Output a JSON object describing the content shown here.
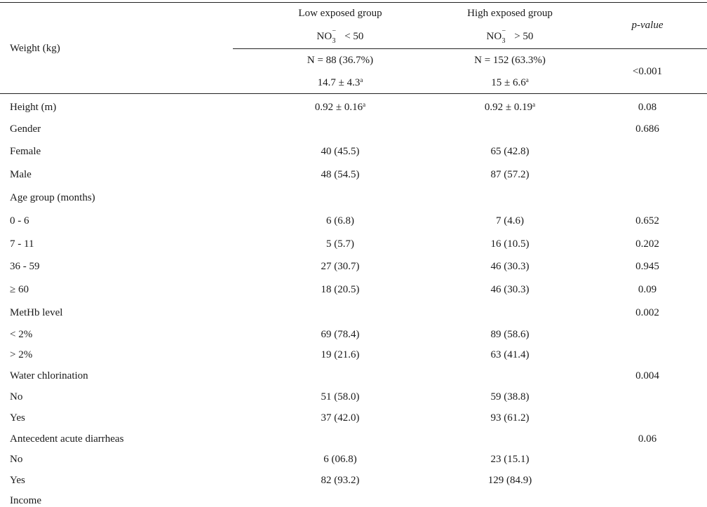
{
  "header": {
    "row_label": "Weight (kg)",
    "low_group_title": "Low exposed group",
    "high_group_title": "High exposed group",
    "pvalue_title": "p-value",
    "low_condition": {
      "species": "NO",
      "subscript": "3",
      "charge": "−",
      "op_value": "< 50"
    },
    "high_condition": {
      "species": "NO",
      "subscript": "3",
      "charge": "−",
      "op_value": "> 50"
    },
    "low_n": "N = 88 (36.7%)",
    "high_n": "N = 152 (63.3%)",
    "weight_low": "14.7 ± 4.3",
    "weight_high": "15 ± 6.6",
    "weight_sup": "a",
    "weight_p": "<0.001"
  },
  "rows": [
    {
      "label": "Height (m)",
      "low": "0.92 ± 0.16",
      "high": "0.92 ± 0.19",
      "sup": "a",
      "p": "0.08"
    },
    {
      "label": "Gender",
      "low": "",
      "high": "",
      "p": "0.686"
    },
    {
      "label": "Female",
      "low": "40 (45.5)",
      "high": "65 (42.8)",
      "p": ""
    },
    {
      "label": "Male",
      "low": "48 (54.5)",
      "high": "87 (57.2)",
      "p": ""
    },
    {
      "label": "Age group (months)",
      "low": "",
      "high": "",
      "p": ""
    },
    {
      "label": "0 - 6",
      "low": "6 (6.8)",
      "high": "7 (4.6)",
      "p": "0.652"
    },
    {
      "label": "7 - 11",
      "low": "5 (5.7)",
      "high": "16 (10.5)",
      "p": "0.202"
    },
    {
      "label": "36 - 59",
      "low": "27 (30.7)",
      "high": "46 (30.3)",
      "p": "0.945"
    },
    {
      "label": "≥ 60",
      "low": "18 (20.5)",
      "high": "46 (30.3)",
      "p": "0.09"
    },
    {
      "label": "MetHb level",
      "low": "",
      "high": "",
      "p": "0.002"
    },
    {
      "label": "< 2%",
      "low": "69 (78.4)",
      "high": "89 (58.6)",
      "p": ""
    },
    {
      "label": "> 2%",
      "low": "19 (21.6)",
      "high": "63 (41.4)",
      "p": ""
    },
    {
      "label": "Water chlorination",
      "low": "",
      "high": "",
      "p": "0.004"
    },
    {
      "label": "No",
      "low": "51 (58.0)",
      "high": "59 (38.8)",
      "p": ""
    },
    {
      "label": "Yes",
      "low": "37 (42.0)",
      "high": "93 (61.2)",
      "p": ""
    },
    {
      "label": "Antecedent acute diarrheas",
      "low": "",
      "high": "",
      "p": "0.06"
    },
    {
      "label": "No",
      "low": "6 (06.8)",
      "high": "23 (15.1)",
      "p": ""
    },
    {
      "label": "Yes",
      "low": "82 (93.2)",
      "high": "129 (84.9)",
      "p": ""
    },
    {
      "label": "Income",
      "low": "",
      "high": "",
      "p": ""
    }
  ]
}
